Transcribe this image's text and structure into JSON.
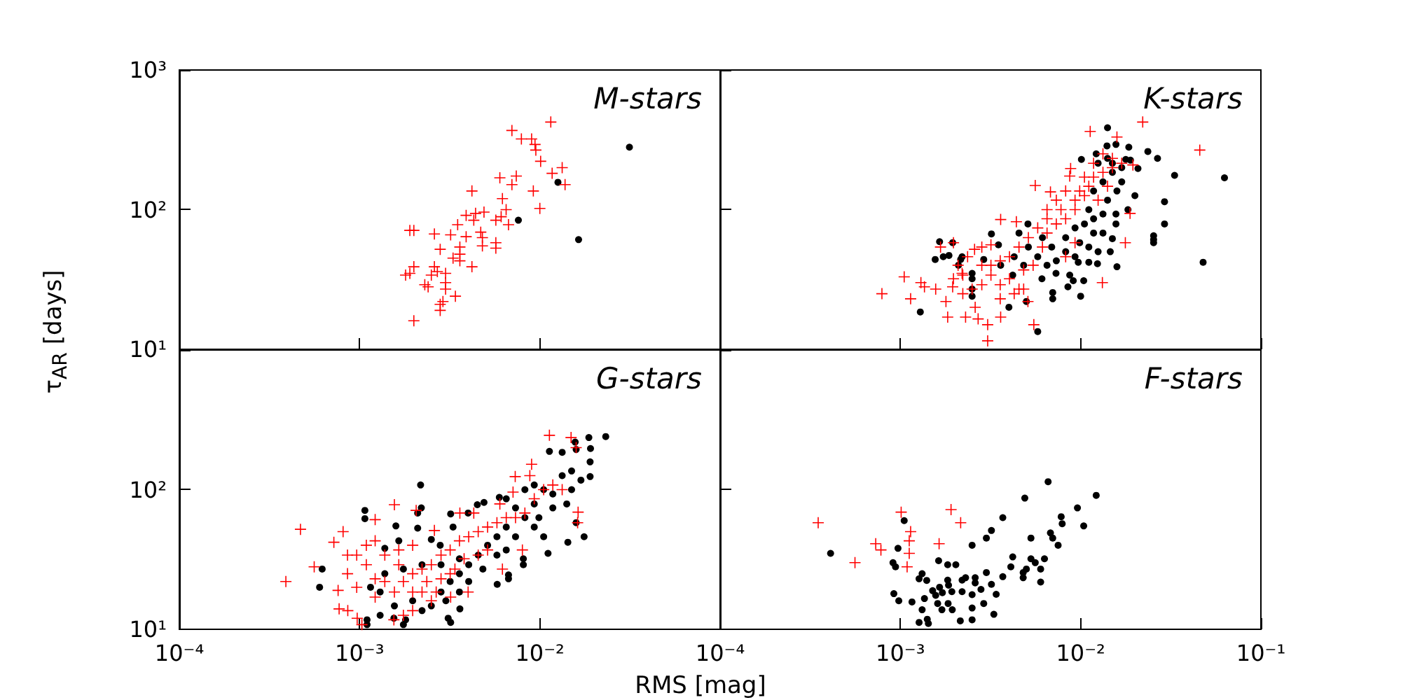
{
  "chart_data": [
    {
      "type": "scatter",
      "title": "M-stars",
      "log": "xy",
      "tick_labels": "y",
      "xlim": [
        0.0001,
        0.1
      ],
      "ylim": [
        10,
        1000
      ],
      "xticks": [
        0.0001,
        0.001,
        0.01,
        0.1
      ],
      "yticks": [
        {
          "value": 10,
          "label": "10¹"
        },
        {
          "value": 100,
          "label": "10²"
        },
        {
          "value": 1000,
          "label": "10³"
        }
      ],
      "ylabel": "τ$_{AR}$ [days]",
      "series": [
        {
          "color": "#000000",
          "marker": "circle",
          "x": [
            0.0076,
            0.0126,
            0.0164,
            0.0314
          ],
          "values": [
            84,
            157,
            61,
            280
          ]
        },
        {
          "color": "#ff0000",
          "marker": "cross",
          "x": [
            0.0115,
            0.007,
            0.0079,
            0.009,
            0.0094,
            0.0095,
            0.0101,
            0.0133,
            0.0117,
            0.0138,
            0.006,
            0.0074,
            0.007,
            0.0042,
            0.0062,
            0.0092,
            0.01,
            0.0065,
            0.0049,
            0.0044,
            0.0039,
            0.0043,
            0.0061,
            0.0057,
            0.0067,
            0.0035,
            0.0019,
            0.002,
            0.0026,
            0.0032,
            0.0039,
            0.0047,
            0.0048,
            0.0048,
            0.0057,
            0.0057,
            0.0036,
            0.0028,
            0.0036,
            0.0033,
            0.0036,
            0.0042,
            0.0026,
            0.0027,
            0.003,
            0.0025,
            0.002,
            0.0019,
            0.0018,
            0.0023,
            0.0024,
            0.003,
            0.003,
            0.0034,
            0.0029,
            0.0028,
            0.0028,
            0.002
          ],
          "values": [
            424,
            369,
            321,
            321,
            293,
            267,
            222,
            200,
            182,
            151,
            169,
            174,
            151,
            136,
            120,
            136,
            102,
            100,
            96,
            94,
            91,
            84,
            89,
            84,
            78,
            78,
            71,
            71,
            67,
            66,
            64,
            69,
            63,
            55,
            58,
            53,
            54,
            52,
            48,
            45,
            43,
            39,
            39,
            36,
            35,
            34,
            39,
            35,
            34,
            29,
            28,
            30,
            27,
            24,
            22,
            21,
            19,
            16
          ]
        }
      ]
    },
    {
      "type": "scatter",
      "title": "K-stars",
      "log": "xy",
      "tick_labels": false,
      "xlim": [
        0.0001,
        0.1
      ],
      "ylim": [
        10,
        1000
      ],
      "xticks": [
        0.0001,
        0.001,
        0.01,
        0.1
      ],
      "yticks": [
        10,
        100,
        1000
      ],
      "series": [
        {
          "color": "#000000",
          "marker": "circle",
          "x": [
            0.00129,
            0.00578,
            0.007,
            0.007,
            0.01,
            0.0085,
            0.0104,
            0.0091,
            0.0159,
            0.0478,
            0.0628,
            0.0332,
            0.0267,
            0.0236,
            0.0292,
            0.0292,
            0.0254,
            0.0254,
            0.0254,
            0.0141,
            0.014,
            0.0157,
            0.0185,
            0.0122,
            0.0101,
            0.0178,
            0.0189,
            0.0208,
            0.02,
            0.0183,
            0.0157,
            0.0157,
            0.015,
            0.0146,
            0.0125,
            0.0124,
            0.0111,
            0.0097,
            0.0087,
            0.0073,
            0.0061,
            0.004,
            0.005,
            0.0025,
            0.0025,
            0.0025,
            0.0025,
            0.0029,
            0.0032,
            0.0035,
            0.00165,
            0.00195,
            0.00156,
            0.00173,
            0.00186,
            0.00216,
            0.0022,
            0.0021,
            0.00455,
            0.0051,
            0.0036,
            0.0042,
            0.0118,
            0.0133,
            0.0141,
            0.015,
            0.0159,
            0.0169,
            0.0111,
            0.0105,
            0.0118,
            0.0133,
            0.00988,
            0.0111,
            0.00931,
            0.00826,
            0.00733,
            0.00651,
            0.00578,
            0.00513,
            0.0125,
            0.015,
            0.0169,
            0.0141,
            0.0133,
            0.0118,
            0.00931,
            0.00826,
            0.00691,
            0.00614,
            0.00483,
            0.00428
          ],
          "values": [
            18.5,
            13.4,
            23,
            25.5,
            24,
            28,
            31,
            31,
            39,
            42,
            169,
            176,
            233,
            261,
            114,
            79,
            65,
            61,
            58,
            386,
            286,
            293,
            280,
            251,
            229,
            229,
            226,
            197,
            126,
            100,
            93,
            79,
            62,
            50,
            50,
            41,
            42,
            42,
            34,
            35,
            32,
            20,
            22,
            27,
            24,
            32,
            35,
            44,
            67,
            56,
            59,
            58,
            44,
            46,
            47,
            44,
            46,
            40,
            68,
            79,
            40,
            34,
            136,
            158,
            117,
            185,
            136,
            158,
            100,
            79,
            68,
            93,
            58,
            54,
            46,
            50,
            43,
            40,
            46,
            54,
            215,
            215,
            200,
            233,
            68,
            86,
            74,
            63,
            54,
            63,
            40,
            46
          ]
        },
        {
          "color": "#ff0000",
          "marker": "cross",
          "x": [
            0.00079,
            0.00105,
            0.00114,
            0.0013,
            0.00136,
            0.00157,
            0.00167,
            0.00197,
            0.00179,
            0.00183,
            0.00195,
            0.0022,
            0.0023,
            0.0026,
            0.0027,
            0.00305,
            0.00305,
            0.0036,
            0.0036,
            0.0044,
            0.0051,
            0.0055,
            0.0056,
            0.0068,
            0.0088,
            0.0087,
            0.0113,
            0.0159,
            0.0221,
            0.0458,
            0.0195,
            0.0188,
            0.0177,
            0.0132,
            0.00318,
            0.00283,
            0.00258,
            0.00236,
            0.00209,
            0.00222,
            0.00197,
            0.00283,
            0.00318,
            0.00358,
            0.00403,
            0.00455,
            0.00483,
            0.00545,
            0.00614,
            0.00651,
            0.00733,
            0.00826,
            0.00931,
            0.0105,
            0.0111,
            0.0118,
            0.0133,
            0.015,
            0.0169,
            0.0141,
            0.0125,
            0.00988,
            0.00931,
            0.00778,
            0.00651,
            0.00578,
            0.00513,
            0.00455,
            0.00403,
            0.00358,
            0.00318,
            0.00283,
            0.0025,
            0.00222,
            0.00358,
            0.00428,
            0.00483,
            0.00651,
            0.00733,
            0.00826,
            0.0105,
            0.0118,
            0.0133,
            0.015,
            0.00931,
            0.00826
          ],
          "values": [
            25,
            33,
            23,
            30,
            28,
            27,
            54,
            58,
            22,
            17,
            28,
            35,
            17,
            20,
            16.5,
            15,
            11.5,
            17,
            85,
            82,
            22,
            15,
            149,
            134,
            197,
            174,
            363,
            331,
            424,
            267,
            209,
            94,
            58,
            30,
            56,
            54,
            52,
            46,
            40,
            34,
            32,
            40,
            34,
            29,
            32,
            27,
            37,
            40,
            54,
            68,
            79,
            86,
            100,
            126,
            147,
            171,
            185,
            200,
            215,
            147,
            117,
            136,
            117,
            100,
            86,
            74,
            63,
            54,
            46,
            43,
            40,
            29,
            27,
            25,
            23,
            25,
            27,
            100,
            117,
            136,
            171,
            215,
            251,
            233,
            58,
            46
          ]
        }
      ]
    },
    {
      "type": "scatter",
      "title": "G-stars",
      "log": "xy",
      "xlim": [
        0.0001,
        0.1
      ],
      "ylim": [
        10,
        1000
      ],
      "xticks": [
        {
          "value": 0.0001,
          "label": "10⁻⁴"
        },
        {
          "value": 0.001,
          "label": "10⁻³"
        },
        {
          "value": 0.01,
          "label": "10⁻²"
        },
        {
          "value": 0.1,
          "label": null
        }
      ],
      "yticks": [
        {
          "value": 10,
          "label": "10¹"
        },
        {
          "value": 100,
          "label": "10²"
        },
        {
          "value": 1000,
          "label": null
        }
      ],
      "xlabel": "RMS [mag]",
      "series": [
        {
          "color": "#000000",
          "marker": "circle",
          "x": [
            0.0232,
            0.0187,
            0.0191,
            0.019,
            0.0157,
            0.0159,
            0.0133,
            0.0113,
            0.019,
            0.0176,
            0.0143,
            0.0159,
            0.0111,
            0.0081,
            0.0081,
            0.0067,
            0.0067,
            0.0058,
            0.0036,
            0.0032,
            0.0031,
            0.00175,
            0.0018,
            0.00155,
            0.0011,
            0.0011,
            0.0013,
            0.0006,
            0.00062,
            0.00107,
            0.00107,
            0.00138,
            0.00159,
            0.00165,
            0.00218,
            0.0022,
            0.0021,
            0.0021,
            0.0025,
            0.0028,
            0.0032,
            0.0033,
            0.004,
            0.0045,
            0.0049,
            0.00596,
            0.00651,
            0.00733,
            0.00826,
            0.00931,
            0.0105,
            0.0118,
            0.0133,
            0.015,
            0.0169,
            0.00931,
            0.00826,
            0.00651,
            0.00578,
            0.00733,
            0.00931,
            0.0118,
            0.0141,
            0.015,
            0.00988,
            0.0105,
            0.00513,
            0.00455,
            0.00403,
            0.00358,
            0.00318,
            0.00283,
            0.00301,
            0.00358,
            0.00483,
            0.00651,
            0.00403,
            0.0025,
            0.00222,
            0.00197,
            0.00156,
            0.0013,
            0.00115,
            0.00138,
            0.00175,
            0.00222,
            0.00283,
            0.00358,
            0.00578
          ],
          "values": [
            240,
            236,
            197,
            158,
            219,
            194,
            185,
            188,
            124,
            46,
            42,
            58,
            35,
            29,
            32,
            23,
            24.5,
            21,
            14,
            11.2,
            12,
            10.8,
            11.7,
            12,
            10.8,
            11.7,
            12.6,
            20,
            27,
            62,
            71,
            38,
            55,
            43,
            108,
            74,
            53,
            68,
            44,
            40,
            67,
            54,
            68,
            78,
            81,
            88,
            86,
            74,
            100,
            108,
            100,
            93,
            126,
            136,
            117,
            79,
            63,
            54,
            46,
            46,
            54,
            74,
            79,
            100,
            63,
            46,
            40,
            34,
            29,
            25,
            22,
            18.5,
            16,
            18.5,
            27,
            37,
            22,
            14.7,
            13.6,
            16,
            14.7,
            18.5,
            20,
            25,
            27,
            29,
            29,
            32,
            34
          ]
        },
        {
          "color": "#ff0000",
          "marker": "cross",
          "x": [
            0.00039,
            0.00047,
            0.00056,
            0.00072,
            0.00081,
            0.00076,
            0.00077,
            0.00086,
            0.00097,
            0.00103,
            0.00156,
            0.00122,
            0.00206,
            0.0026,
            0.0036,
            0.0043,
            0.006,
            0.0071,
            0.0073,
            0.0088,
            0.009,
            0.0113,
            0.0149,
            0.0159,
            0.0163,
            0.0162,
            0.008,
            0.0062,
            0.004,
            0.0032,
            0.0025,
            0.00197,
            0.00175,
            0.00155,
            0.000964,
            0.00109,
            0.000857,
            0.00122,
            0.00138,
            0.000964,
            0.00122,
            0.00156,
            0.00175,
            0.00197,
            0.00222,
            0.0025,
            0.00283,
            0.00318,
            0.00358,
            0.00403,
            0.00455,
            0.00513,
            0.00578,
            0.00651,
            0.00733,
            0.00826,
            0.00931,
            0.0105,
            0.0118,
            0.0133,
            0.00197,
            0.00236,
            0.00283,
            0.00338,
            0.0038,
            0.00455,
            0.00513,
            0.00222,
            0.00266,
            0.00318,
            0.00165,
            0.00138,
            0.00109,
            0.000857,
            0.00122,
            0.00165,
            0.00197
          ],
          "values": [
            22,
            52,
            28,
            42,
            50,
            19,
            14,
            13.6,
            12,
            10.8,
            78,
            61,
            71,
            51,
            68,
            68,
            79,
            96,
            124,
            126,
            152,
            245,
            236,
            200,
            69,
            58,
            37,
            27,
            18.5,
            17,
            16,
            13.6,
            12.6,
            11.7,
            34,
            29,
            25,
            23,
            22,
            20,
            17,
            18.5,
            22,
            25,
            27,
            29,
            34,
            37,
            43,
            46,
            50,
            54,
            58,
            63,
            63,
            68,
            86,
            100,
            108,
            100,
            18.5,
            22,
            23,
            27,
            32,
            34,
            37,
            18.5,
            18.5,
            25,
            29,
            34,
            40,
            34,
            43,
            37,
            40
          ]
        }
      ]
    },
    {
      "type": "scatter",
      "title": "F-stars",
      "log": "xy",
      "tick_labels": "x",
      "xlim": [
        0.0001,
        0.1
      ],
      "ylim": [
        10,
        1000
      ],
      "xticks": [
        {
          "value": 0.0001,
          "label": "10⁻⁴"
        },
        {
          "value": 0.001,
          "label": "10⁻³"
        },
        {
          "value": 0.01,
          "label": "10⁻²"
        },
        {
          "value": 0.1,
          "label": "10⁻¹"
        }
      ],
      "yticks": [
        10,
        100,
        1000
      ],
      "series": [
        {
          "color": "#000000",
          "marker": "circle",
          "x": [
            0.00041,
            0.00105,
            0.00097,
            0.00091,
            0.00094,
            0.00092,
            0.00098,
            0.00116,
            0.00127,
            0.00132,
            0.0014,
            0.00132,
            0.00127,
            0.00141,
            0.00143,
            0.00136,
            0.00151,
            0.00157,
            0.00161,
            0.00171,
            0.00165,
            0.0017,
            0.00184,
            0.00194,
            0.00185,
            0.00183,
            0.00193,
            0.00163,
            0.00183,
            0.00203,
            0.00215,
            0.0022,
            0.0023,
            0.0022,
            0.0025,
            0.0025,
            0.0025,
            0.0025,
            0.0026,
            0.0026,
            0.0028,
            0.0029,
            0.003,
            0.0032,
            0.003,
            0.0032,
            0.0033,
            0.0034,
            0.0037,
            0.0037,
            0.0041,
            0.0042,
            0.0048,
            0.0048,
            0.0049,
            0.005,
            0.0053,
            0.0053,
            0.0056,
            0.006,
            0.006,
            0.0063,
            0.0066,
            0.0068,
            0.007,
            0.0075,
            0.0078,
            0.0079,
            0.0096,
            0.0104,
            0.0122
          ],
          "values": [
            35,
            60,
            38,
            30,
            28,
            18,
            16,
            15.7,
            23,
            25,
            22.4,
            13.8,
            11.2,
            11.8,
            11,
            16.6,
            18.9,
            17.5,
            15.3,
            18.3,
            20,
            13.8,
            15.3,
            13.8,
            20.7,
            22.5,
            18.6,
            31,
            29,
            29,
            11.5,
            22.5,
            23.4,
            18.6,
            40,
            14.2,
            11.7,
            17.7,
            21.5,
            23.4,
            19.3,
            15.3,
            45,
            51,
            25.5,
            21,
            12.8,
            17.8,
            63,
            23.8,
            28,
            33,
            25.5,
            23.4,
            87,
            27,
            45,
            32,
            30,
            27,
            21.8,
            32,
            114,
            49,
            45,
            40,
            64,
            57,
            74,
            55,
            91
          ]
        },
        {
          "color": "#ff0000",
          "marker": "cross",
          "x": [
            0.00035,
            0.00056,
            0.00073,
            0.00078,
            0.00101,
            0.00114,
            0.00112,
            0.00112,
            0.00109,
            0.00164,
            0.00191,
            0.00216
          ],
          "values": [
            58,
            30,
            41,
            37,
            69,
            50,
            43,
            35,
            28,
            41,
            72,
            58
          ]
        }
      ]
    }
  ]
}
